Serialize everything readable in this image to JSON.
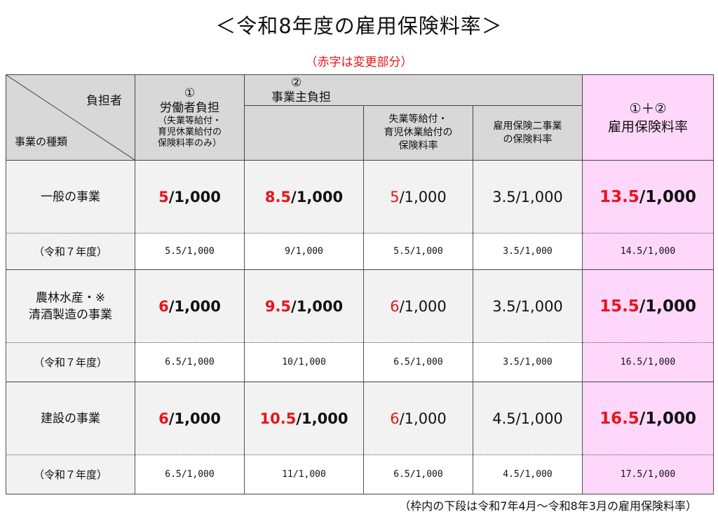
{
  "title": "＜令和8年度の雇用保険料率＞",
  "subtitle": "（赤字は変更部分）",
  "footer": "（枠内の下段は令和7年4月～令和8年3月の雇用保険料率）",
  "colors": {
    "highlight": "#e8141a",
    "header_bg": "#d8d8d8",
    "total_bg": "#ffd7fb",
    "row_bg": "#f2f2f2"
  },
  "header": {
    "diag_top": "負担者",
    "diag_bottom": "事業の種類",
    "worker": {
      "num": "①",
      "label": "労働者負担",
      "note_line1": "（失業等給付・",
      "note_line2": "育児休業給付の",
      "note_line3": "保険料率のみ）"
    },
    "employer": {
      "num": "②",
      "label": "事業主負担",
      "sub1_line1": "失業等給付・",
      "sub1_line2": "育児休業給付の",
      "sub1_line3": "保険料率",
      "sub2_line1": "雇用保険二事業",
      "sub2_line2": "の保険料率"
    },
    "total": {
      "num": "①＋②",
      "label": "雇用保険料率"
    }
  },
  "rows": [
    {
      "category_line1": "一般の事業",
      "category_line2": "",
      "worker_a": "5",
      "worker_b": "/1,000",
      "employer_a": "8.5",
      "employer_b": "/1,000",
      "sub1_a": "5",
      "sub1_b": "/1,000",
      "sub2": "3.5/1,000",
      "total_a": "13.5",
      "total_b": "/1,000",
      "prev_label": "（令和７年度）",
      "prev": {
        "worker": "5.5/1,000",
        "employer": "9/1,000",
        "sub1": "5.5/1,000",
        "sub2": "3.5/1,000",
        "total": "14.5/1,000"
      }
    },
    {
      "category_line1": "農林水産・※",
      "category_line2": "清酒製造の事業",
      "worker_a": "6",
      "worker_b": "/1,000",
      "employer_a": "9.5",
      "employer_b": "/1,000",
      "sub1_a": "6",
      "sub1_b": "/1,000",
      "sub2": "3.5/1,000",
      "total_a": "15.5",
      "total_b": "/1,000",
      "prev_label": "（令和７年度）",
      "prev": {
        "worker": "6.5/1,000",
        "employer": "10/1,000",
        "sub1": "6.5/1,000",
        "sub2": "3.5/1,000",
        "total": "16.5/1,000"
      }
    },
    {
      "category_line1": "建設の事業",
      "category_line2": "",
      "worker_a": "6",
      "worker_b": "/1,000",
      "employer_a": "10.5",
      "employer_b": "/1,000",
      "sub1_a": "6",
      "sub1_b": "/1,000",
      "sub2": "4.5/1,000",
      "total_a": "16.5",
      "total_b": "/1,000",
      "prev_label": "（令和７年度）",
      "prev": {
        "worker": "6.5/1,000",
        "employer": "11/1,000",
        "sub1": "6.5/1,000",
        "sub2": "4.5/1,000",
        "total": "17.5/1,000"
      }
    }
  ]
}
